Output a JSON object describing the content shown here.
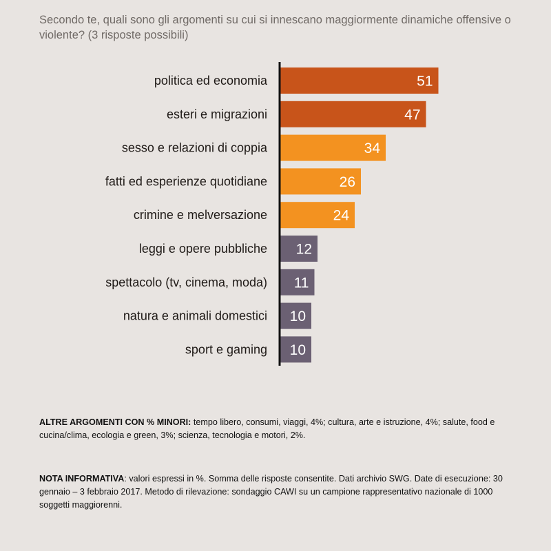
{
  "question": "Secondo te, quali sono gli argomenti su cui si innescano maggiormente dinamiche offensive o violente? (3 risposte possibili)",
  "chart_data": {
    "type": "bar",
    "orientation": "horizontal",
    "categories": [
      "politica ed economia",
      "esteri e migrazioni",
      "sesso e relazioni di coppia",
      "fatti ed esperienze quotidiane",
      "crimine e melversazione",
      "leggi e opere pubbliche",
      "spettacolo (tv, cinema, moda)",
      "natura e animali domestici",
      "sport e gaming"
    ],
    "values": [
      51,
      47,
      34,
      26,
      24,
      12,
      11,
      10,
      10
    ],
    "colors": [
      "#c8541a",
      "#c8541a",
      "#f39220",
      "#f39220",
      "#f39220",
      "#6b6073",
      "#6b6073",
      "#6b6073",
      "#6b6073"
    ],
    "title": "",
    "xlabel": "",
    "ylabel": "",
    "xlim": [
      0,
      55
    ],
    "grid": false,
    "legend": "none"
  },
  "notes": {
    "other_label": "ALTRE ARGOMENTI CON % MINORI:",
    "other_text": " tempo libero, consumi, viaggi, 4%; cultura, arte e istruzione, 4%; salute, food e cucina/clima, ecologia e green, 3%; scienza, tecnologia e motori, 2%.",
    "info_label": "NOTA INFORMATIVA",
    "info_text": ": valori espressi in %. Somma delle risposte consentite. Dati archivio SWG. Date di esecuzione: 30 gennaio – 3 febbraio 2017. Metodo di rilevazione: sondaggio CAWI su un campione rappresentativo nazionale di 1000 soggetti maggiorenni."
  }
}
